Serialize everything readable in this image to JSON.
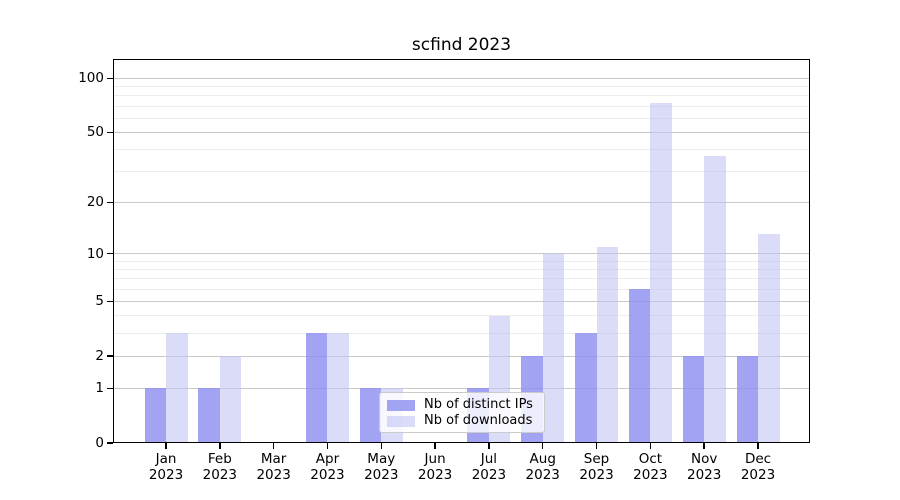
{
  "window": {
    "background": "#ffffff"
  },
  "chart_data": {
    "type": "bar",
    "title": "scfind 2023",
    "categories": [
      "Jan",
      "Feb",
      "Mar",
      "Apr",
      "May",
      "Jun",
      "Jul",
      "Aug",
      "Sep",
      "Oct",
      "Nov",
      "Dec"
    ],
    "category_year": "2023",
    "series": [
      {
        "name": "Nb of distinct IPs",
        "values": [
          1,
          1,
          0,
          3,
          1,
          0,
          1,
          2,
          3,
          6,
          2,
          2
        ],
        "color": "rgba(141,144,240,0.82)"
      },
      {
        "name": "Nb of downloads",
        "values": [
          3,
          2,
          0,
          3,
          1,
          0,
          4,
          10,
          11,
          73,
          37,
          13
        ],
        "color": "rgba(189,191,243,0.55)"
      }
    ],
    "yscale": "log1p",
    "ylim": [
      0,
      128
    ],
    "yticks": [
      0,
      1,
      2,
      5,
      10,
      20,
      50,
      100
    ],
    "yticks_minor": [
      3,
      4,
      6,
      7,
      8,
      9,
      30,
      40,
      60,
      70,
      80,
      90
    ],
    "grid": "horizontal",
    "legend_position": "inside lower center",
    "colors": {
      "grid_major": "#c9c9c9",
      "grid_minor": "#ececec",
      "spine": "#000000",
      "text": "#000000"
    }
  }
}
